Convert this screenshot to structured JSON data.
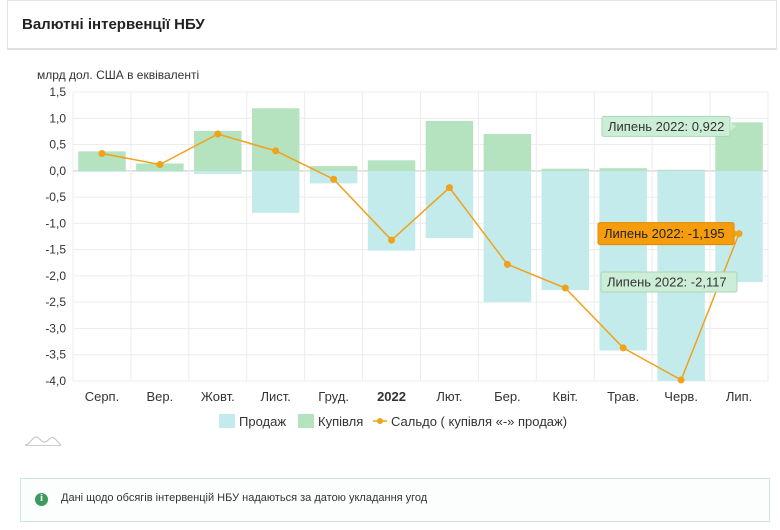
{
  "header": {
    "title": "Валютні інтервенції НБУ"
  },
  "chart_data": {
    "type": "bar+line",
    "ylabel": "млрд дол. США в еквіваленті",
    "ylim": [
      -4.0,
      1.5
    ],
    "yticks": [
      "1,5",
      "1,0",
      "0,5",
      "0,0",
      "-0,5",
      "-1,0",
      "-1,5",
      "-2,0",
      "-2,5",
      "-3,0",
      "-3,5",
      "-4,0"
    ],
    "ytick_values": [
      1.5,
      1.0,
      0.5,
      0.0,
      -0.5,
      -1.0,
      -1.5,
      -2.0,
      -2.5,
      -3.0,
      -3.5,
      -4.0
    ],
    "categories": [
      "Серп.",
      "Вер.",
      "Жовт.",
      "Лист.",
      "Груд.",
      "2022",
      "Лют.",
      "Бер.",
      "Квіт.",
      "Трав.",
      "Черв.",
      "Лип."
    ],
    "bold_categories": [
      "2022"
    ],
    "series": [
      {
        "name": "Продаж",
        "kind": "bar",
        "color": "#c3ebeb",
        "values": [
          -0.02,
          -0.02,
          -0.06,
          -0.8,
          -0.24,
          -1.52,
          -1.28,
          -2.5,
          -2.27,
          -3.42,
          -4.0,
          -2.117
        ]
      },
      {
        "name": "Купівля",
        "kind": "bar",
        "color": "#b5e2bf",
        "values": [
          0.37,
          0.14,
          0.76,
          1.19,
          0.09,
          0.2,
          0.95,
          0.7,
          0.04,
          0.05,
          0.02,
          0.922
        ]
      },
      {
        "name": "Сальдо ( купівля «-» продаж)",
        "kind": "line",
        "color": "#f0a21b",
        "values": [
          0.33,
          0.12,
          0.7,
          0.38,
          -0.16,
          -1.32,
          -0.32,
          -1.78,
          -2.23,
          -3.37,
          -3.98,
          -1.195
        ]
      }
    ],
    "annotations": [
      {
        "text": "Липень 2022: 0,922",
        "series": "Купівля",
        "style": "green"
      },
      {
        "text": "Липень 2022: -1,195",
        "series": "Сальдо ( купівля «-» продаж)",
        "style": "orange"
      },
      {
        "text": "Липень 2022: -2,117",
        "series": "Продаж",
        "style": "green"
      }
    ],
    "grid": true,
    "legend_position": "bottom"
  },
  "note": {
    "text": "Дані щодо обсягів інтервенцій НБУ надаються за датою укладання угод"
  }
}
